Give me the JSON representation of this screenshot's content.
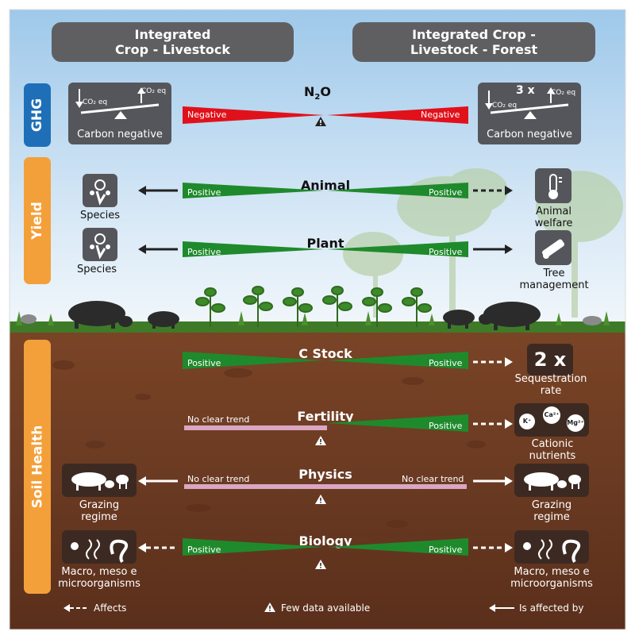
{
  "headers": {
    "left": "Integrated\nCrop - Livestock",
    "right": "Integrated Crop -\nLivestock - Forest"
  },
  "side_tabs": {
    "ghg": "GHG",
    "yield": "Yield",
    "soil": "Soil Health"
  },
  "ghg": {
    "title_main": "N",
    "title_sub": "2",
    "title_end": "O",
    "left_label": "Negative",
    "right_label": "Negative",
    "left_box": {
      "eq1": "CO₂ eq",
      "eq2": "CO₂ eq",
      "caption": "Carbon negative"
    },
    "right_box": {
      "multiplier": "3 x",
      "eq1": "CO₂ eq",
      "eq2": "CO₂ eq",
      "caption": "Carbon negative"
    }
  },
  "yield": {
    "animal": {
      "title": "Animal",
      "left_label": "Positive",
      "right_label": "Positive"
    },
    "plant": {
      "title": "Plant",
      "left_label": "Positive",
      "right_label": "Positive"
    },
    "left_species_1": "Species",
    "left_species_2": "Species",
    "right_top": "Animal\nwelfare",
    "right_bottom": "Tree\nmanagement"
  },
  "soil": {
    "cstock": {
      "title": "C Stock",
      "left_label": "Positive",
      "right_label": "Positive",
      "box": "2 x",
      "caption": "Sequestration\nrate"
    },
    "fertility": {
      "title": "Fertility",
      "left_label": "No clear trend",
      "right_label": "Positive",
      "caption": "Cationic\nnutrients",
      "ions": [
        "K⁺",
        "Ca²⁺",
        "Mg²⁺"
      ]
    },
    "physics": {
      "title": "Physics",
      "left_label": "No clear trend",
      "right_label": "No clear trend",
      "left_caption": "Grazing\nregime",
      "right_caption": "Grazing\nregime"
    },
    "biology": {
      "title": "Biology",
      "left_label": "Positive",
      "right_label": "Positive",
      "left_caption": "Macro, meso e\nmicroorganisms",
      "right_caption": "Macro, meso e\nmicroorganisms"
    }
  },
  "legend": {
    "affects": "Affects",
    "few_data": "Few data available",
    "affected_by": "Is affected by"
  },
  "colors": {
    "negative": "#e1111b",
    "positive": "#1f8a2c",
    "no_trend": "#d9a7c2",
    "ghg_tab": "#1f6fb8",
    "orange_tab": "#f3a03a",
    "soil": "#6e3b22"
  }
}
